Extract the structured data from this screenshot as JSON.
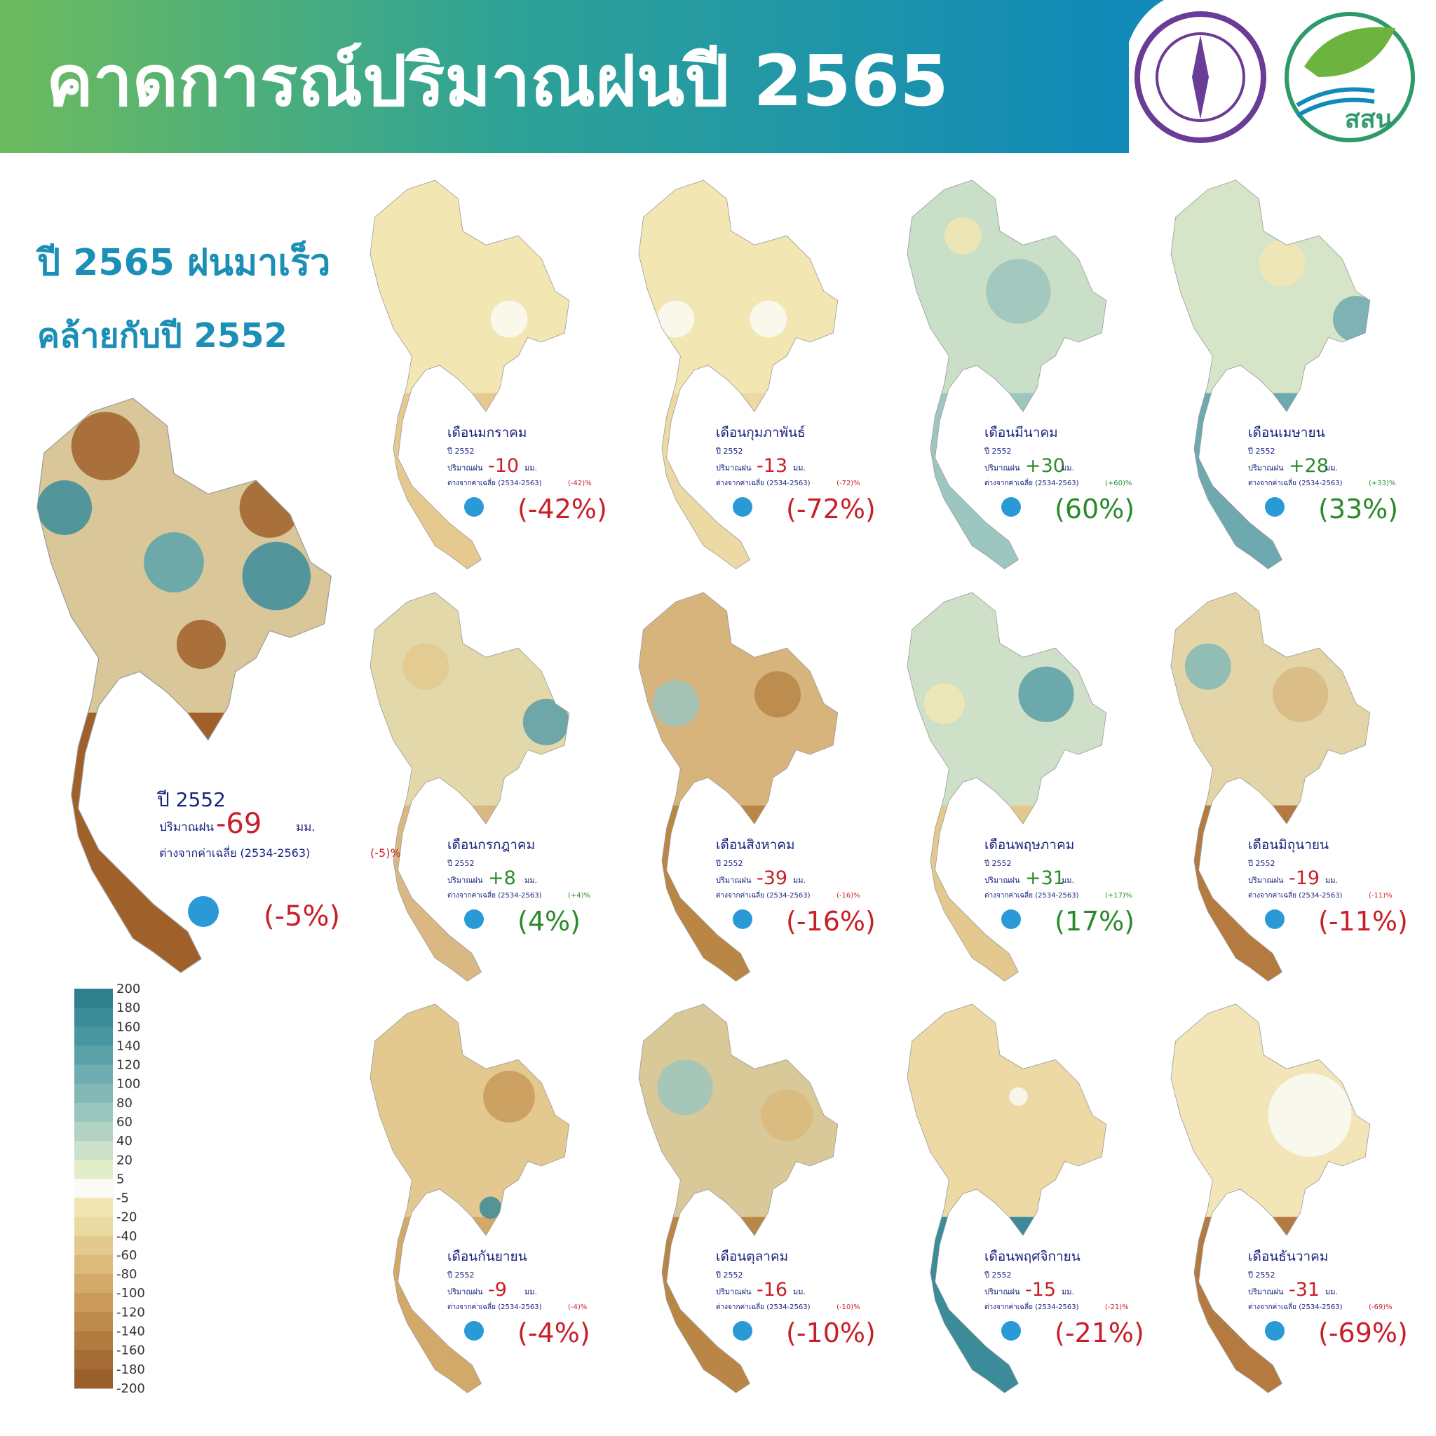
{
  "header": {
    "title": "คาดการณ์ปริมาณฝนปี 2565",
    "logo_text": "สสน"
  },
  "subtitle": [
    "ปี 2565 ฝนมาเร็ว",
    "คล้ายกับปี 2552"
  ],
  "annual": {
    "year_label": "ปี 2552",
    "rain_label": "ปริมาณฝน",
    "rain_value": "-69",
    "unit": "มม.",
    "diff_label": "ต่างจากค่าเฉลี่ย (2534-2563)",
    "diff_small": "(-5)%",
    "diff_big": "(-5%)"
  },
  "legend": {
    "labels": [
      "200",
      "180",
      "160",
      "140",
      "120",
      "100",
      "80",
      "60",
      "40",
      "20",
      "5",
      "-5",
      "-20",
      "-40",
      "-60",
      "-80",
      "-100",
      "-120",
      "-140",
      "-160",
      "-180",
      "-200"
    ]
  },
  "months": [
    {
      "name": "เดือนมกราคม",
      "year_label": "ปี 2552",
      "rain_label": "ปริมาณฝน",
      "value": "-10",
      "unit": "มม.",
      "diff_label": "ต่างจากค่าเฉลี่ย (2534-2563)",
      "diff_small": "(-42)%",
      "diff_big": "(-42%)"
    },
    {
      "name": "เดือนกุมภาพันธ์",
      "year_label": "ปี 2552",
      "rain_label": "ปริมาณฝน",
      "value": "-13",
      "unit": "มม.",
      "diff_label": "ต่างจากค่าเฉลี่ย (2534-2563)",
      "diff_small": "(-72)%",
      "diff_big": "(-72%)"
    },
    {
      "name": "เดือนมีนาคม",
      "year_label": "ปี 2552",
      "rain_label": "ปริมาณฝน",
      "value": "+30",
      "unit": "มม.",
      "diff_label": "ต่างจากค่าเฉลี่ย (2534-2563)",
      "diff_small": "(+60)%",
      "diff_big": "(60%)"
    },
    {
      "name": "เดือนเมษายน",
      "year_label": "ปี 2552",
      "rain_label": "ปริมาณฝน",
      "value": "+28",
      "unit": "มม.",
      "diff_label": "ต่างจากค่าเฉลี่ย (2534-2563)",
      "diff_small": "(+33)%",
      "diff_big": "(33%)"
    },
    {
      "name": "เดือนกรกฎาคม",
      "year_label": "ปี 2552",
      "rain_label": "ปริมาณฝน",
      "value": "+8",
      "unit": "มม.",
      "diff_label": "ต่างจากค่าเฉลี่ย (2534-2563)",
      "diff_small": "(+4)%",
      "diff_big": "(4%)"
    },
    {
      "name": "เดือนสิงหาคม",
      "year_label": "ปี 2552",
      "rain_label": "ปริมาณฝน",
      "value": "-39",
      "unit": "มม.",
      "diff_label": "ต่างจากค่าเฉลี่ย (2534-2563)",
      "diff_small": "(-16)%",
      "diff_big": "(-16%)"
    },
    {
      "name": "เดือนพฤษภาคม",
      "year_label": "ปี 2552",
      "rain_label": "ปริมาณฝน",
      "value": "+31",
      "unit": "มม.",
      "diff_label": "ต่างจากค่าเฉลี่ย (2534-2563)",
      "diff_small": "(+17)%",
      "diff_big": "(17%)"
    },
    {
      "name": "เดือนมิถุนายน",
      "year_label": "ปี 2552",
      "rain_label": "ปริมาณฝน",
      "value": "-19",
      "unit": "มม.",
      "diff_label": "ต่างจากค่าเฉลี่ย (2534-2563)",
      "diff_small": "(-11)%",
      "diff_big": "(-11%)"
    },
    {
      "name": "เดือนกันยายน",
      "year_label": "ปี 2552",
      "rain_label": "ปริมาณฝน",
      "value": "-9",
      "unit": "มม.",
      "diff_label": "ต่างจากค่าเฉลี่ย (2534-2563)",
      "diff_small": "(-4)%",
      "diff_big": "(-4%)"
    },
    {
      "name": "เดือนตุลาคม",
      "year_label": "ปี 2552",
      "rain_label": "ปริมาณฝน",
      "value": "-16",
      "unit": "มม.",
      "diff_label": "ต่างจากค่าเฉลี่ย (2534-2563)",
      "diff_small": "(-10)%",
      "diff_big": "(-10%)"
    },
    {
      "name": "เดือนพฤศจิกายน",
      "year_label": "ปี 2552",
      "rain_label": "ปริมาณฝน",
      "value": "-15",
      "unit": "มม.",
      "diff_label": "ต่างจากค่าเฉลี่ย (2534-2563)",
      "diff_small": "(-21)%",
      "diff_big": "(-21%)"
    },
    {
      "name": "เดือนธันวาคม",
      "year_label": "ปี 2552",
      "rain_label": "ปริมาณฝน",
      "value": "-31",
      "unit": "มม.",
      "diff_label": "ต่างจากค่าเฉลี่ย (2534-2563)",
      "diff_small": "(-69)%",
      "diff_big": "(-69%)"
    }
  ]
}
